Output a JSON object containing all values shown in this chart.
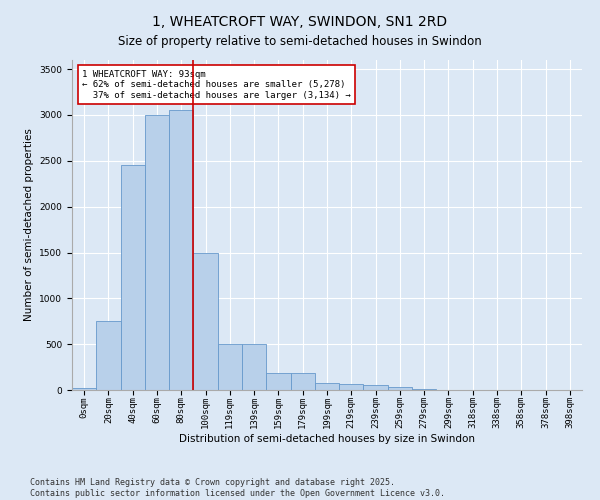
{
  "title": "1, WHEATCROFT WAY, SWINDON, SN1 2RD",
  "subtitle": "Size of property relative to semi-detached houses in Swindon",
  "xlabel": "Distribution of semi-detached houses by size in Swindon",
  "ylabel": "Number of semi-detached properties",
  "bin_labels": [
    "0sqm",
    "20sqm",
    "40sqm",
    "60sqm",
    "80sqm",
    "100sqm",
    "119sqm",
    "139sqm",
    "159sqm",
    "179sqm",
    "199sqm",
    "219sqm",
    "239sqm",
    "259sqm",
    "279sqm",
    "299sqm",
    "318sqm",
    "338sqm",
    "358sqm",
    "378sqm",
    "398sqm"
  ],
  "bar_values": [
    20,
    750,
    2450,
    3000,
    3050,
    1500,
    500,
    500,
    190,
    190,
    80,
    70,
    50,
    30,
    8,
    5,
    2,
    1,
    0,
    0,
    0
  ],
  "bar_color": "#b8d0ea",
  "bar_edge_color": "#6699cc",
  "vline_x": 4.5,
  "vline_label": "1 WHEATCROFT WAY: 93sqm",
  "smaller_pct": 62,
  "smaller_count": 5278,
  "larger_pct": 37,
  "larger_count": 3134,
  "vline_color": "#cc0000",
  "annotation_box_color": "#cc0000",
  "ylim": [
    0,
    3600
  ],
  "yticks": [
    0,
    500,
    1000,
    1500,
    2000,
    2500,
    3000,
    3500
  ],
  "background_color": "#dce8f5",
  "plot_bg_color": "#dce8f5",
  "footnote": "Contains HM Land Registry data © Crown copyright and database right 2025.\nContains public sector information licensed under the Open Government Licence v3.0.",
  "title_fontsize": 10,
  "subtitle_fontsize": 8.5,
  "axis_label_fontsize": 7.5,
  "tick_fontsize": 6.5,
  "footnote_fontsize": 6.0
}
